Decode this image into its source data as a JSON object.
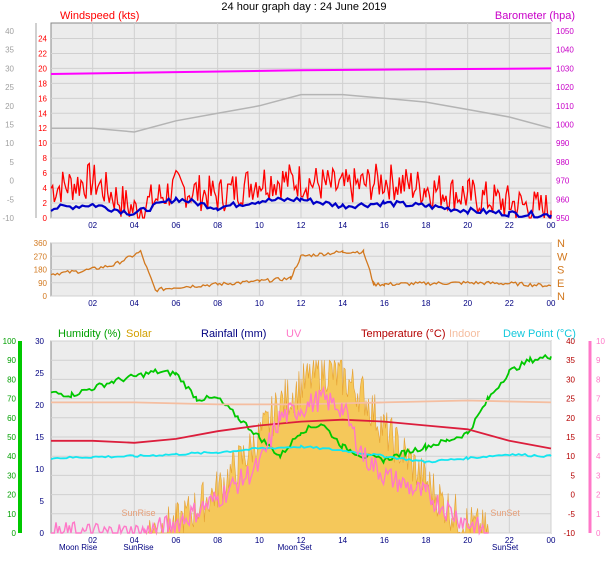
{
  "chart_data": [
    {
      "type": "line",
      "title": "24 hour graph day : 24 June 2019",
      "left_axis_label": "Windspeed (kts)",
      "right_axis_label": "Barometer (hpa)",
      "x_ticks": [
        "02",
        "04",
        "06",
        "08",
        "10",
        "12",
        "14",
        "16",
        "18",
        "20",
        "22",
        "00"
      ],
      "left_ticks_inner": [
        0,
        2,
        4,
        6,
        8,
        10,
        12,
        14,
        16,
        18,
        20,
        22,
        24
      ],
      "left_ticks_outer": [
        -10,
        -5,
        0,
        5,
        10,
        15,
        20,
        25,
        30,
        35,
        40
      ],
      "right_ticks": [
        950,
        960,
        970,
        980,
        990,
        1000,
        1010,
        1020,
        1030,
        1040,
        1050
      ],
      "ylim_kts": [
        0,
        25
      ],
      "ylim_hpa": [
        950,
        1050
      ],
      "series": [
        {
          "name": "Barometer",
          "color": "#ff00ff",
          "unit": "hpa",
          "x": [
            0,
            6,
            12,
            18,
            24
          ],
          "values": [
            1027,
            1028,
            1029,
            1029.5,
            1030
          ]
        },
        {
          "name": "Windspeed gust",
          "color": "#ff0000",
          "unit": "kts",
          "x": [
            0,
            2,
            4,
            6,
            8,
            10,
            12,
            14,
            16,
            18,
            20,
            22,
            24
          ],
          "values": [
            4,
            5,
            1,
            4,
            3,
            5,
            5,
            4,
            5,
            4,
            3,
            2,
            1
          ]
        },
        {
          "name": "Windspeed average",
          "color": "#0000c8",
          "unit": "kts",
          "x": [
            0,
            2,
            4,
            6,
            8,
            10,
            12,
            14,
            16,
            18,
            20,
            22,
            24
          ],
          "values": [
            1.3,
            1.8,
            0.6,
            2.6,
            1.4,
            2.3,
            2.5,
            1.6,
            2.0,
            1.6,
            1.0,
            0.6,
            0.4
          ]
        },
        {
          "name": "Wind chill",
          "color": "#b4b4b4",
          "unit": "kts",
          "x": [
            0,
            2,
            4,
            6,
            8,
            10,
            12,
            14,
            16,
            18,
            20,
            22,
            24
          ],
          "values": [
            12,
            12,
            11.5,
            13,
            14,
            15,
            16.5,
            16.5,
            16,
            15.5,
            14.5,
            13.5,
            12
          ]
        }
      ]
    },
    {
      "type": "line",
      "title": "",
      "right_labels": [
        "N",
        "W",
        "S",
        "E",
        "N"
      ],
      "left_ticks": [
        0,
        90,
        180,
        270,
        360
      ],
      "x_ticks": [
        "02",
        "04",
        "06",
        "08",
        "10",
        "12",
        "14",
        "16",
        "18",
        "20",
        "22",
        "00"
      ],
      "ylim": [
        0,
        360
      ],
      "series": [
        {
          "name": "Wind direction",
          "color": "#d2781e",
          "x": [
            0,
            1.5,
            3,
            4.3,
            5,
            6,
            8,
            10,
            11.5,
            12,
            14,
            15,
            15.5,
            16,
            18,
            20,
            22,
            24
          ],
          "values": [
            150,
            170,
            210,
            300,
            40,
            60,
            80,
            100,
            120,
            270,
            300,
            300,
            80,
            80,
            85,
            90,
            85,
            70
          ]
        }
      ]
    },
    {
      "type": "line",
      "labels": {
        "humidity": "Humidity  (%)",
        "solar": "Solar",
        "rainfall": "Rainfall (mm)",
        "uv": "UV",
        "temperature": "Temperature (°C)",
        "indoor": "Indoor",
        "dewpoint": "Dew Point (°C)"
      },
      "x_ticks": [
        "02",
        "04",
        "06",
        "08",
        "10",
        "12",
        "14",
        "16",
        "18",
        "20",
        "22",
        "00"
      ],
      "humidity_ticks": [
        0,
        10,
        20,
        30,
        40,
        50,
        60,
        70,
        80,
        90,
        100
      ],
      "rain_ticks": [
        0,
        5,
        10,
        15,
        20,
        25,
        30
      ],
      "temp_ticks": [
        -10,
        -5,
        0,
        5,
        10,
        15,
        20,
        25,
        30,
        35,
        40
      ],
      "uv_ticks": [
        0,
        1,
        2,
        3,
        4,
        5,
        6,
        7,
        8,
        9,
        10
      ],
      "events": [
        {
          "label": "Moon Rise",
          "x": 1.3
        },
        {
          "label": "SunRise",
          "x": 4.2
        },
        {
          "label": "Moon Set",
          "x": 11.7
        },
        {
          "label": "SunSet",
          "x": 21.8
        }
      ],
      "series": [
        {
          "name": "Humidity",
          "color": "#00c800",
          "unit": "%",
          "x": [
            0,
            1,
            3,
            5,
            6,
            7,
            8,
            9,
            10,
            11,
            12,
            13,
            14,
            15,
            16,
            17,
            18,
            19,
            20,
            21,
            22,
            23,
            24
          ],
          "values": [
            73,
            72,
            79,
            84,
            83,
            70,
            70,
            60,
            50,
            40,
            53,
            57,
            45,
            40,
            38,
            42,
            45,
            48,
            52,
            70,
            84,
            90,
            92
          ]
        },
        {
          "name": "Temperature",
          "color": "#dc1e3c",
          "unit": "°C",
          "x": [
            0,
            2,
            4,
            6,
            8,
            10,
            12,
            14,
            16,
            18,
            20,
            22,
            24
          ],
          "values": [
            14,
            14,
            13.5,
            14.5,
            16.5,
            18,
            19,
            19.5,
            19,
            18,
            17,
            14,
            12
          ]
        },
        {
          "name": "Indoor",
          "color": "#f5bea0",
          "unit": "°C",
          "x": [
            0,
            4,
            8,
            12,
            16,
            20,
            24
          ],
          "values": [
            24,
            24,
            23.5,
            23.5,
            24,
            24.5,
            24
          ]
        },
        {
          "name": "Dew Point",
          "color": "#14e6f0",
          "unit": "°C",
          "x": [
            0,
            2,
            4,
            6,
            8,
            10,
            12,
            14,
            16,
            18,
            20,
            22,
            24
          ],
          "values": [
            9.5,
            9.8,
            10,
            10.5,
            11,
            12,
            12.5,
            11.5,
            10,
            8.5,
            9.5,
            10.5,
            10
          ]
        },
        {
          "name": "UV",
          "color": "#ff78c8",
          "unit": "index",
          "x": [
            0,
            4.5,
            6,
            8,
            10,
            11,
            12,
            13,
            14,
            15,
            16,
            18,
            20,
            21
          ],
          "values": [
            0,
            0,
            0.5,
            1.8,
            3.5,
            6,
            6.5,
            7,
            6.5,
            4,
            3,
            2,
            0.5,
            0
          ]
        },
        {
          "name": "Solar",
          "color": "#f0b432",
          "unit": "W/m²",
          "x": [
            4.5,
            6,
            7,
            8,
            9,
            10,
            11,
            12,
            13,
            14,
            15,
            16,
            17,
            18,
            19,
            20,
            21
          ],
          "values": [
            0,
            0.05,
            0.15,
            0.25,
            0.4,
            0.55,
            0.75,
            0.85,
            0.95,
            0.9,
            0.8,
            0.6,
            0.45,
            0.3,
            0.15,
            0.05,
            0
          ]
        }
      ]
    }
  ]
}
